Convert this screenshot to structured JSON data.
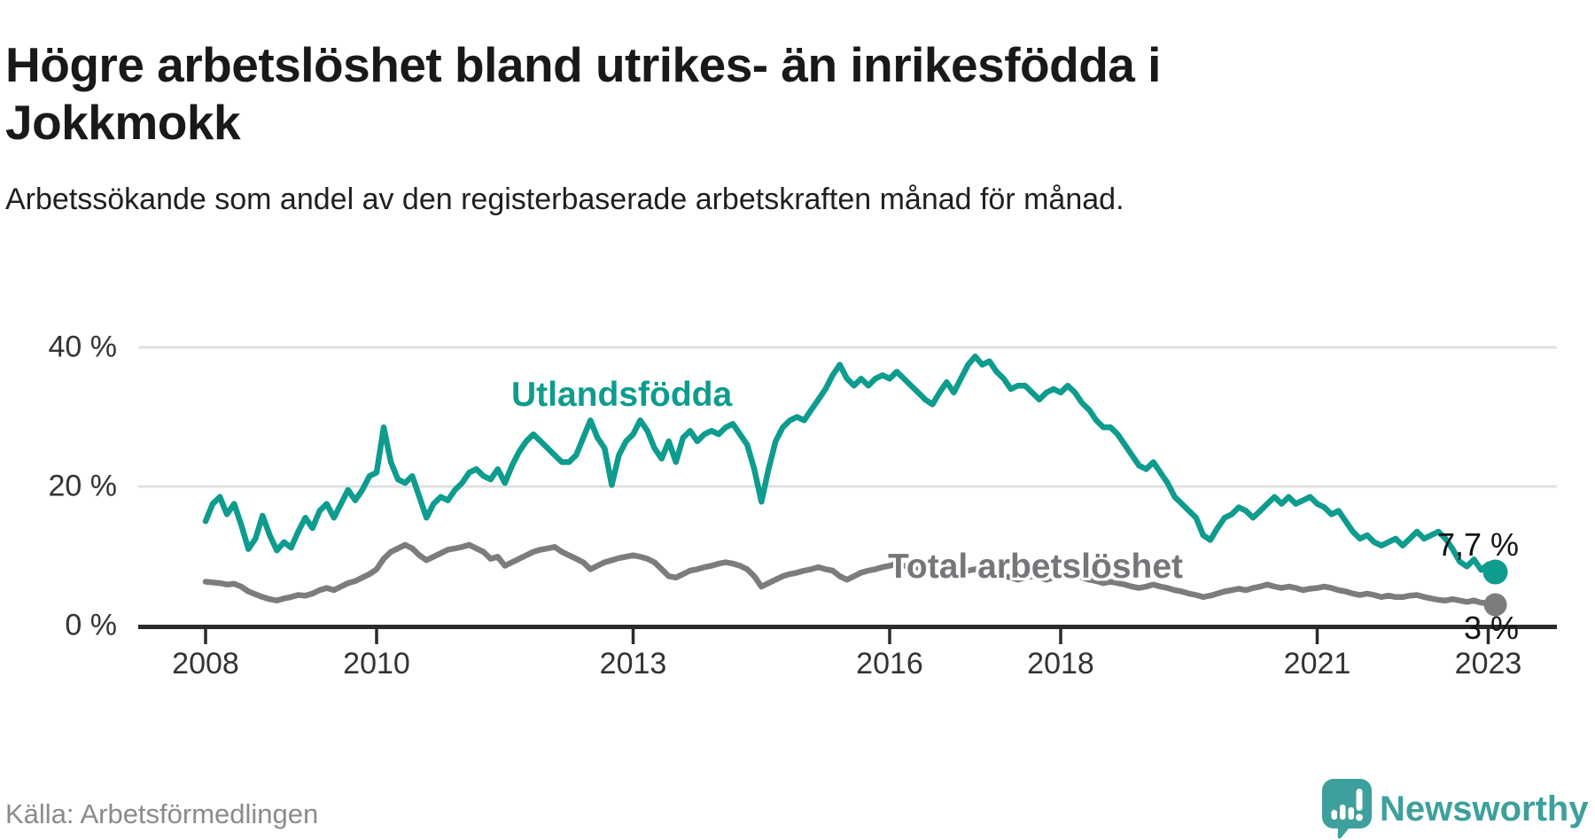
{
  "title": "Högre arbetslöshet bland utrikes- än inrikesfödda i Jokkmokk",
  "subtitle": "Arbetssökande som andel av den registerbaserade arbetskraften månad för månad.",
  "source": "Källa: Arbetsförmedlingen",
  "branding": {
    "name": "Newsworthy",
    "icon": "newsworthy-speech-bubble-bar-chart-icon"
  },
  "colors": {
    "series_utlandsfodda": "#0d9c8d",
    "series_total": "#7c7c7c",
    "grid": "#e0e0e0",
    "axis": "#2b2b2b",
    "tick_text": "#333333",
    "title_text": "#191919",
    "source_text": "#8b8b8b",
    "logo_teal": "#3da09c"
  },
  "chart_data": {
    "type": "line",
    "title": "Högre arbetslöshet bland utrikes- än inrikesfödda i Jokkmokk",
    "xlabel": "",
    "ylabel": "Arbetssökande som andel av den registerbaserade arbetskraften (%)",
    "frequency": "monthly",
    "x_start": "2008-01",
    "x_end": "2023-02",
    "ylim": [
      0,
      42
    ],
    "grid": "horizontal-only",
    "legend_position": "inline-labels",
    "y_ticks": [
      {
        "label": "0 %",
        "value": 0
      },
      {
        "label": "20 %",
        "value": 20
      },
      {
        "label": "40 %",
        "value": 40
      }
    ],
    "x_ticks": [
      {
        "label": "2008",
        "year": 2008
      },
      {
        "label": "2010",
        "year": 2010
      },
      {
        "label": "2013",
        "year": 2013
      },
      {
        "label": "2016",
        "year": 2016
      },
      {
        "label": "2018",
        "year": 2018
      },
      {
        "label": "2021",
        "year": 2021
      },
      {
        "label": "2023",
        "year": 2023
      }
    ],
    "series": [
      {
        "name": "Utlandsfödda",
        "color": "#0d9c8d",
        "end_label": "7,7 %",
        "end_value": 7.7,
        "values": [
          15.0,
          17.5,
          18.5,
          16.0,
          17.5,
          14.5,
          11.0,
          12.5,
          15.8,
          13.0,
          10.8,
          12.0,
          11.2,
          13.5,
          15.5,
          14.0,
          16.5,
          17.5,
          15.5,
          17.5,
          19.5,
          18.0,
          19.5,
          21.5,
          22.0,
          28.5,
          23.5,
          21.0,
          20.5,
          21.5,
          18.5,
          15.5,
          17.5,
          18.5,
          18.0,
          19.5,
          20.5,
          22.0,
          22.5,
          21.5,
          21.0,
          22.5,
          20.5,
          23.0,
          25.0,
          26.5,
          27.5,
          26.5,
          25.5,
          24.5,
          23.5,
          23.5,
          24.5,
          27.0,
          29.5,
          27.0,
          25.5,
          20.2,
          24.5,
          26.5,
          27.5,
          29.5,
          28.0,
          25.5,
          24.0,
          26.5,
          23.5,
          27.0,
          28.0,
          26.5,
          27.5,
          28.0,
          27.5,
          28.5,
          29.0,
          27.5,
          26.0,
          22.5,
          17.8,
          22.5,
          26.5,
          28.5,
          29.5,
          30.0,
          29.5,
          31.0,
          32.5,
          34.0,
          36.0,
          37.5,
          35.5,
          34.5,
          35.5,
          34.5,
          35.5,
          36.0,
          35.5,
          36.5,
          35.5,
          34.5,
          33.5,
          32.5,
          31.8,
          33.5,
          35.0,
          33.5,
          35.5,
          37.5,
          38.7,
          37.5,
          38.0,
          36.5,
          35.5,
          34.0,
          34.5,
          34.5,
          33.5,
          32.5,
          33.5,
          34.0,
          33.5,
          34.5,
          33.5,
          32.0,
          31.0,
          29.5,
          28.5,
          28.5,
          27.5,
          26.0,
          24.5,
          23.0,
          22.5,
          23.5,
          22.0,
          20.5,
          18.5,
          17.5,
          16.5,
          15.5,
          13.0,
          12.3,
          14.0,
          15.5,
          16.0,
          17.0,
          16.5,
          15.5,
          16.5,
          17.5,
          18.5,
          17.5,
          18.5,
          17.5,
          18.0,
          18.5,
          17.5,
          17.0,
          16.0,
          16.5,
          15.0,
          13.5,
          12.5,
          13.0,
          12.0,
          11.5,
          12.0,
          12.5,
          11.5,
          12.5,
          13.5,
          12.5,
          13.0,
          13.5,
          12.5,
          11.0,
          9.2,
          8.5,
          9.5,
          8.0,
          8.8,
          7.7
        ]
      },
      {
        "name": "Total arbetslöshet",
        "color": "#7c7c7c",
        "end_label": "3 %",
        "end_value": 3,
        "values": [
          6.3,
          6.2,
          6.1,
          5.9,
          6.0,
          5.6,
          4.9,
          4.5,
          4.1,
          3.8,
          3.6,
          3.9,
          4.1,
          4.4,
          4.3,
          4.6,
          5.1,
          5.4,
          5.1,
          5.6,
          6.1,
          6.4,
          6.9,
          7.4,
          8.1,
          9.6,
          10.6,
          11.1,
          11.6,
          11.1,
          10.1,
          9.4,
          9.9,
          10.4,
          10.9,
          11.1,
          11.3,
          11.6,
          11.1,
          10.6,
          9.6,
          9.9,
          8.6,
          9.1,
          9.6,
          10.1,
          10.6,
          10.9,
          11.1,
          11.3,
          10.6,
          10.1,
          9.6,
          9.1,
          8.1,
          8.6,
          9.1,
          9.4,
          9.7,
          9.9,
          10.1,
          9.9,
          9.6,
          9.1,
          8.1,
          7.1,
          6.9,
          7.4,
          7.9,
          8.1,
          8.4,
          8.6,
          8.9,
          9.1,
          8.9,
          8.6,
          8.1,
          7.1,
          5.6,
          6.1,
          6.6,
          7.1,
          7.4,
          7.6,
          7.9,
          8.1,
          8.4,
          8.1,
          7.9,
          7.1,
          6.6,
          7.1,
          7.6,
          7.9,
          8.1,
          8.4,
          8.6,
          8.9,
          8.6,
          8.4,
          8.1,
          7.9,
          7.6,
          7.9,
          8.1,
          7.9,
          7.6,
          7.9,
          8.1,
          7.9,
          7.6,
          7.4,
          7.1,
          6.9,
          6.6,
          6.9,
          7.1,
          6.9,
          6.6,
          6.9,
          7.1,
          7.3,
          7.1,
          6.9,
          6.6,
          6.4,
          6.1,
          6.3,
          6.1,
          5.9,
          5.6,
          5.4,
          5.6,
          5.9,
          5.6,
          5.4,
          5.1,
          4.9,
          4.6,
          4.4,
          4.1,
          4.3,
          4.6,
          4.9,
          5.1,
          5.3,
          5.1,
          5.4,
          5.6,
          5.9,
          5.6,
          5.4,
          5.6,
          5.4,
          5.1,
          5.3,
          5.4,
          5.6,
          5.4,
          5.1,
          4.9,
          4.6,
          4.4,
          4.6,
          4.4,
          4.1,
          4.3,
          4.1,
          4.1,
          4.3,
          4.4,
          4.1,
          3.9,
          3.7,
          3.6,
          3.8,
          3.6,
          3.4,
          3.6,
          3.3,
          3.2,
          3.0
        ]
      }
    ]
  }
}
